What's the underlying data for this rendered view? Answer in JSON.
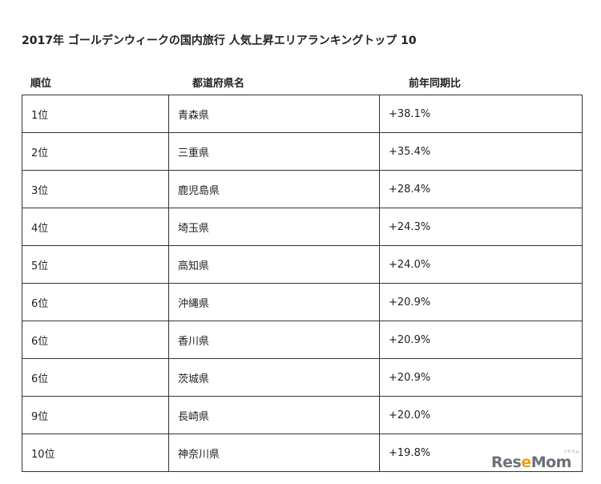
{
  "title": "2017年 ゴールデンウィークの国内旅行 人気上昇エリアランキングトップ 10",
  "headers": {
    "rank": "順位",
    "prefecture": "都道府県名",
    "yoy": "前年同期比"
  },
  "rows": [
    {
      "rank": "1位",
      "prefecture": "青森県",
      "yoy": "+38.1%"
    },
    {
      "rank": "2位",
      "prefecture": "三重県",
      "yoy": "+35.4%"
    },
    {
      "rank": "3位",
      "prefecture": "鹿児島県",
      "yoy": "+28.4%"
    },
    {
      "rank": "4位",
      "prefecture": "埼玉県",
      "yoy": "+24.3%"
    },
    {
      "rank": "5位",
      "prefecture": "高知県",
      "yoy": "+24.0%"
    },
    {
      "rank": "6位",
      "prefecture": "沖縄県",
      "yoy": "+20.9%"
    },
    {
      "rank": "6位",
      "prefecture": "香川県",
      "yoy": "+20.9%"
    },
    {
      "rank": "6位",
      "prefecture": "茨城県",
      "yoy": "+20.9%"
    },
    {
      "rank": "9位",
      "prefecture": "長崎県",
      "yoy": "+20.0%"
    },
    {
      "rank": "10位",
      "prefecture": "神奈川県",
      "yoy": "+19.8%"
    }
  ],
  "watermark": {
    "logo": "ReseMom",
    "tag": "リセマム"
  }
}
